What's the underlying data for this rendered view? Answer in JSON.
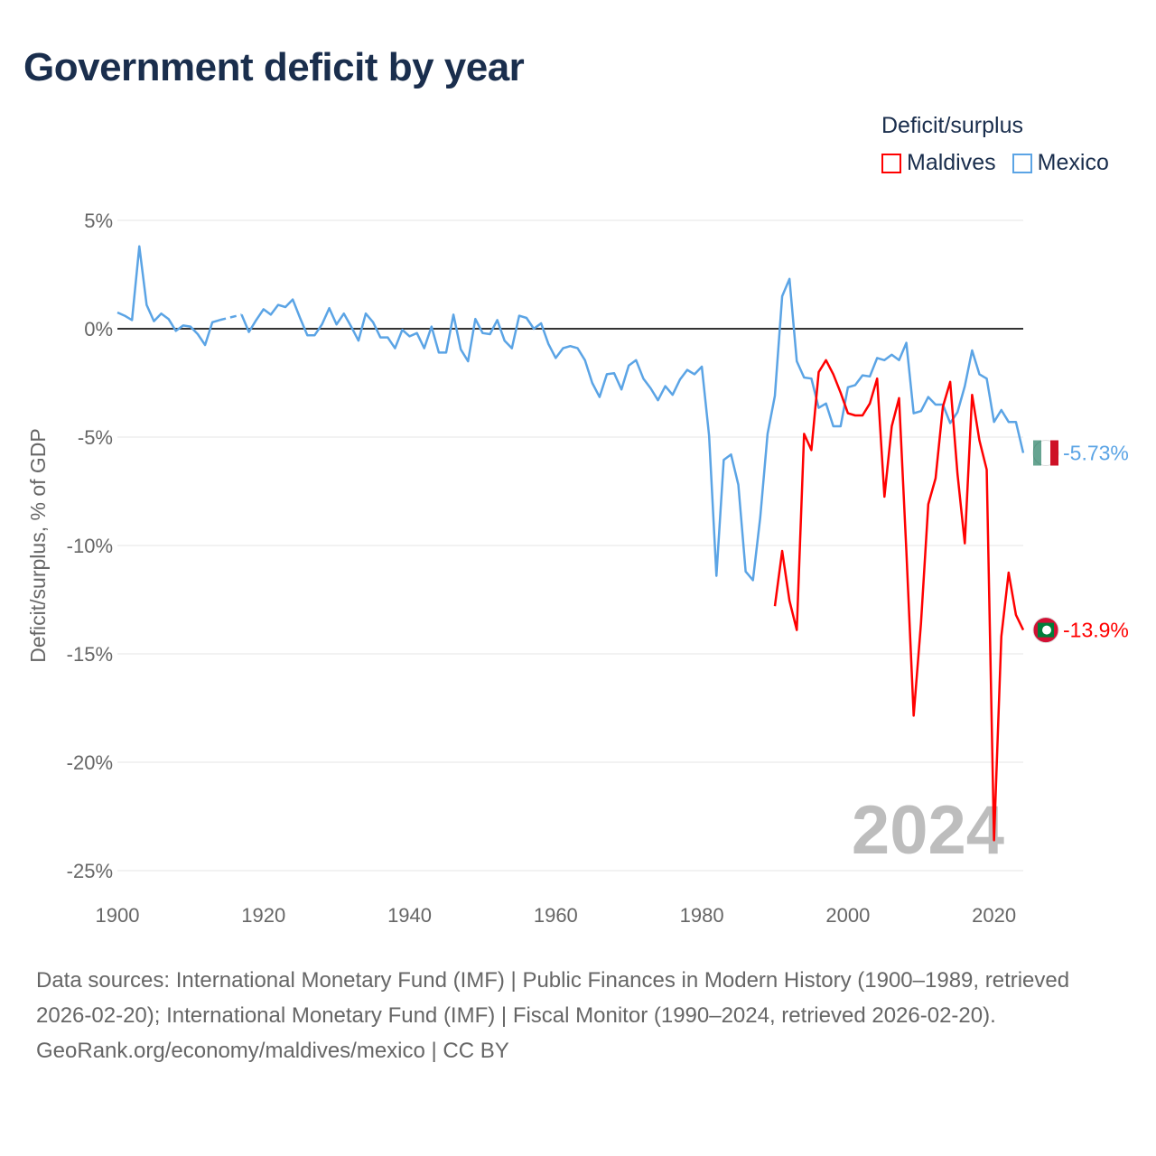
{
  "title": "Government deficit by year",
  "legend": {
    "title": "Deficit/surplus",
    "items": [
      {
        "label": "Maldives",
        "color": "#ff0000"
      },
      {
        "label": "Mexico",
        "color": "#5ba4e5"
      }
    ]
  },
  "watermark_year": "2024",
  "footer": {
    "sources": "Data sources: International Monetary Fund (IMF) | Public Finances in Modern History (1900–1989, retrieved 2026-02-20); International Monetary Fund (IMF) | Fiscal Monitor (1990–2024, retrieved 2026-02-20).",
    "link": "GeoRank.org/economy/maldives/mexico | CC BY"
  },
  "chart_data": {
    "type": "line",
    "title": "Government deficit by year",
    "xlabel": "",
    "ylabel": "Deficit/surplus, % of GDP",
    "xlim": [
      1900,
      2024
    ],
    "ylim": [
      -25,
      5
    ],
    "x_ticks": [
      1900,
      1920,
      1940,
      1960,
      1980,
      2000,
      2020
    ],
    "x_tick_labels": [
      "1900",
      "1920",
      "1940",
      "1960",
      "1980",
      "2000",
      "2020"
    ],
    "y_ticks": [
      5,
      0,
      -5,
      -10,
      -15,
      -20,
      -25
    ],
    "y_tick_labels": [
      "5%",
      "0%",
      "-5%",
      "-10%",
      "-15%",
      "-20%",
      "-25%"
    ],
    "grid": true,
    "legend_position": "top-right",
    "series": [
      {
        "name": "Mexico",
        "color": "#5ba4e5",
        "end_label": "-5.73%",
        "start_year": 1900,
        "values": [
          0.75,
          0.6,
          0.4,
          3.8,
          1.1,
          0.35,
          0.7,
          0.45,
          -0.1,
          0.15,
          0.1,
          -0.25,
          -0.75,
          0.3,
          0.4,
          null,
          null,
          0.65,
          -0.15,
          0.4,
          0.9,
          0.65,
          1.1,
          1.0,
          1.35,
          0.5,
          -0.3,
          -0.3,
          0.2,
          0.95,
          0.2,
          0.7,
          0.1,
          -0.55,
          0.7,
          0.3,
          -0.4,
          -0.4,
          -0.9,
          -0.05,
          -0.35,
          -0.2,
          -0.9,
          0.1,
          -1.1,
          -1.1,
          0.65,
          -0.95,
          -1.5,
          0.45,
          -0.2,
          -0.25,
          0.4,
          -0.55,
          -0.9,
          0.6,
          0.5,
          0.0,
          0.25,
          -0.7,
          -1.35,
          -0.9,
          -0.8,
          -0.9,
          -1.45,
          -2.5,
          -3.15,
          -2.1,
          -2.05,
          -2.8,
          -1.7,
          -1.45,
          -2.3,
          -2.75,
          -3.3,
          -2.65,
          -3.05,
          -2.35,
          -1.9,
          -2.1,
          -1.75,
          -4.95,
          -11.4,
          -6.05,
          -5.8,
          -7.2,
          -11.2,
          -11.6,
          -8.7,
          -4.85,
          -3.1,
          1.5,
          2.3,
          -1.5,
          -2.25,
          -2.3,
          -3.65,
          -3.45,
          -4.5,
          -4.5,
          -2.7,
          -2.6,
          -2.15,
          -2.2,
          -1.35,
          -1.45,
          -1.2,
          -1.45,
          -0.65,
          -3.9,
          -3.8,
          -3.15,
          -3.5,
          -3.5,
          -4.35,
          -3.85,
          -2.65,
          -1.0,
          -2.1,
          -2.3,
          -4.3,
          -3.75,
          -4.3,
          -4.3,
          -5.73
        ]
      },
      {
        "name": "Maldives",
        "color": "#ff0000",
        "end_label": "-13.9%",
        "start_year": 1990,
        "values": [
          -12.8,
          -10.25,
          -12.55,
          -13.9,
          -4.85,
          -5.6,
          -2.0,
          -1.45,
          -2.1,
          -2.95,
          -3.9,
          -4.0,
          -4.0,
          -3.45,
          -2.3,
          -7.75,
          -4.5,
          -3.2,
          -10.25,
          -17.85,
          -13.6,
          -8.1,
          -6.9,
          -3.6,
          -2.45,
          -6.7,
          -9.9,
          -3.05,
          -5.15,
          -6.5,
          -23.6,
          -14.2,
          -11.25,
          -13.2,
          -13.9
        ]
      }
    ]
  }
}
